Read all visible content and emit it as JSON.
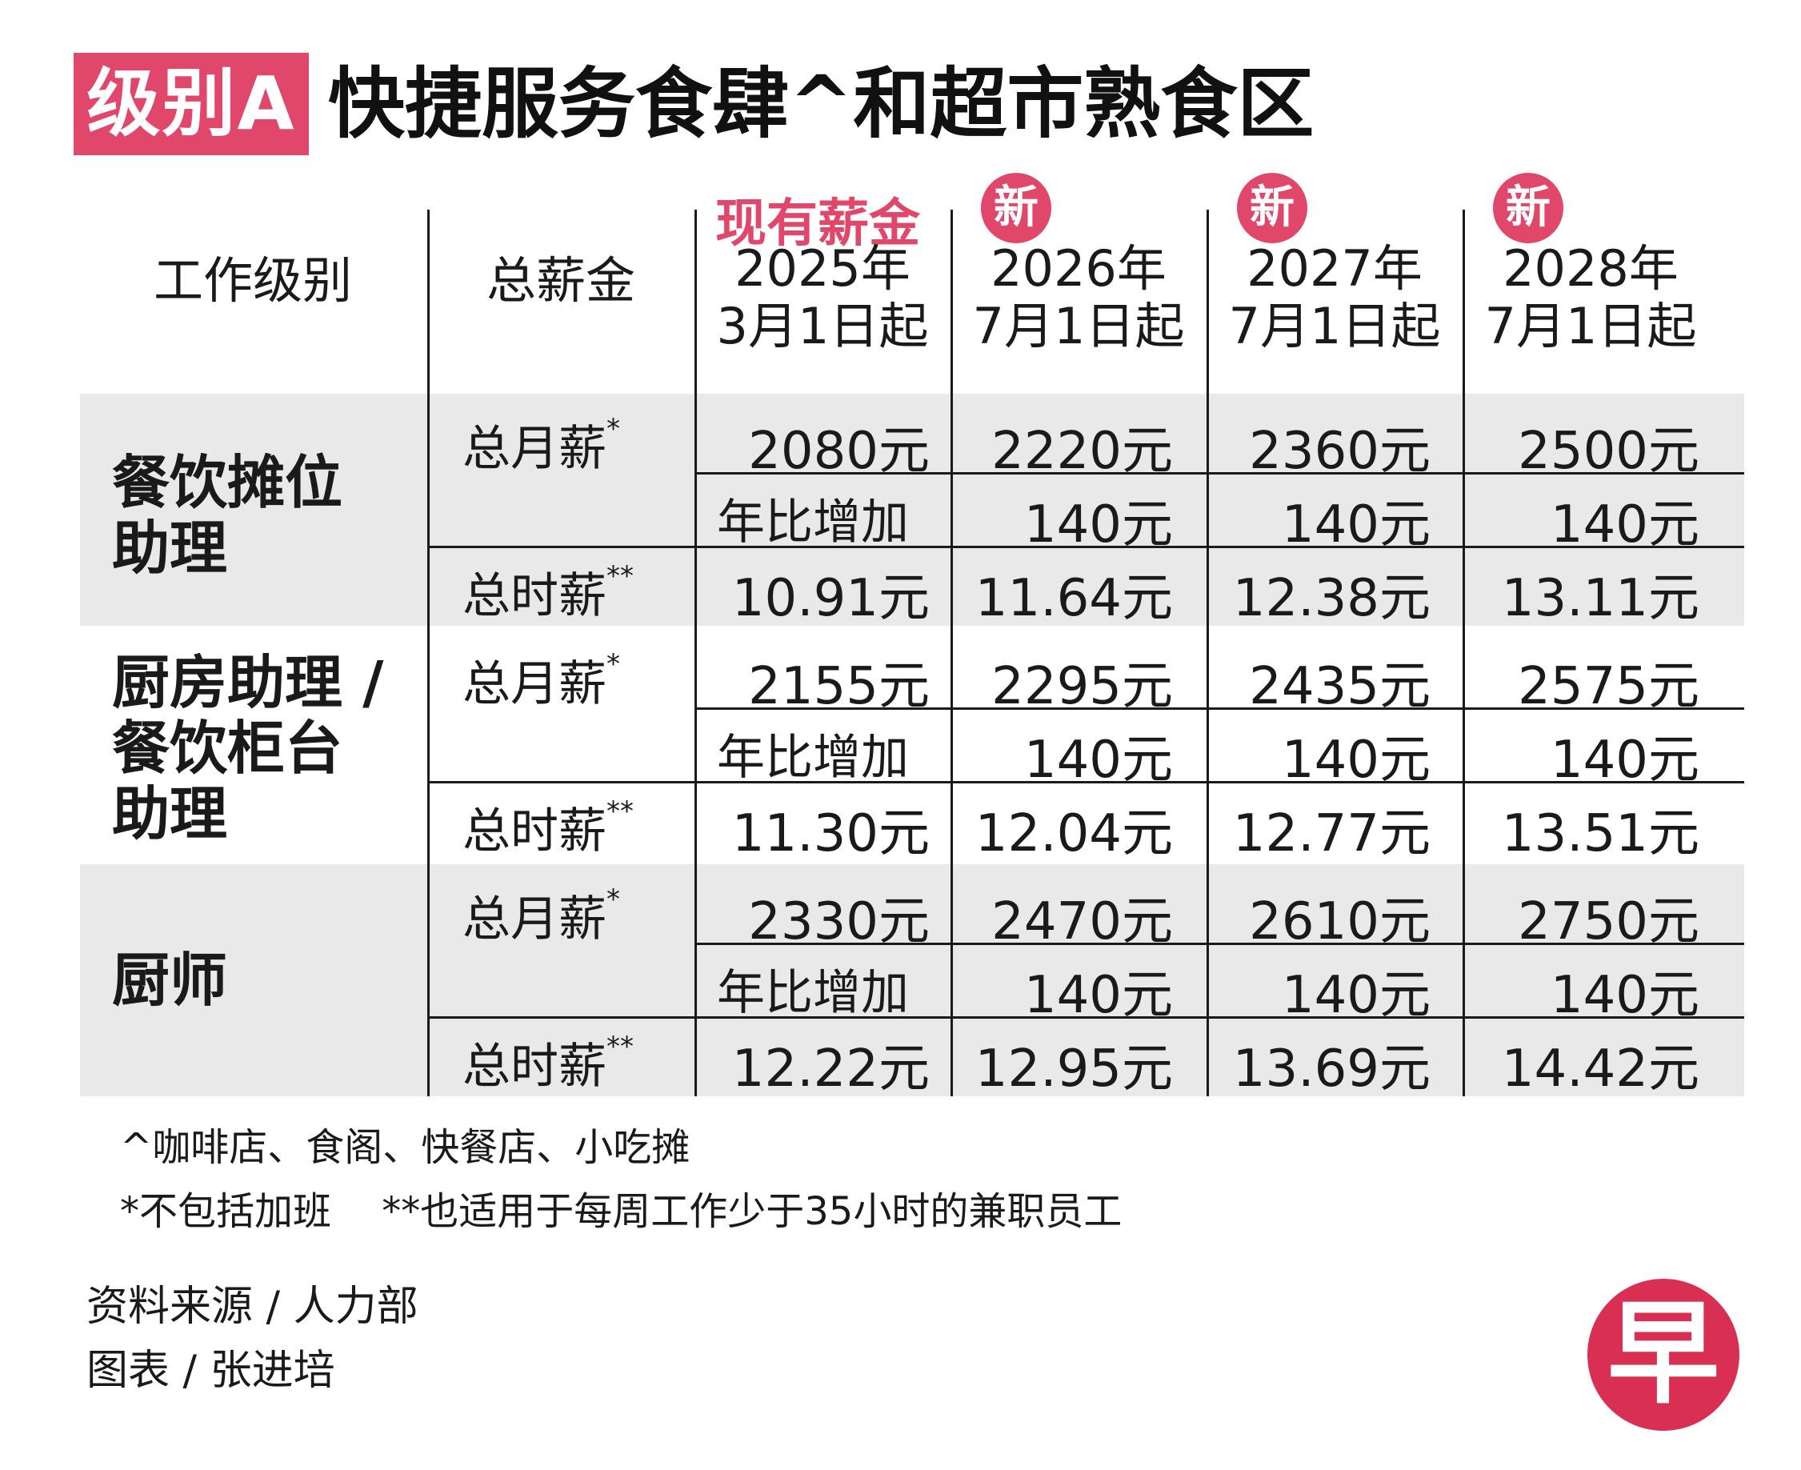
{
  "tag": "级别A",
  "title": "快捷服务食肆^和超市熟食区",
  "header": {
    "job_level": "工作级别",
    "total_wage": "总薪金",
    "current_label": "现有薪金",
    "new_badge": "新",
    "columns": [
      {
        "year": "2025年",
        "date": "3月1日起"
      },
      {
        "year": "2026年",
        "date": "7月1日起"
      },
      {
        "year": "2027年",
        "date": "7月1日起"
      },
      {
        "year": "2028年",
        "date": "7月1日起"
      }
    ]
  },
  "row_labels": {
    "monthly": "总月薪",
    "monthly_mark": "*",
    "yoy": "年比增加",
    "hourly": "总时薪",
    "hourly_mark": "**"
  },
  "groups": [
    {
      "name_lines": [
        "餐饮摊位",
        "助理"
      ],
      "monthly": [
        "2080元",
        "2220元",
        "2360元",
        "2500元"
      ],
      "yoy": [
        "140元",
        "140元",
        "140元"
      ],
      "hourly": [
        "10.91元",
        "11.64元",
        "12.38元",
        "13.11元"
      ]
    },
    {
      "name_lines": [
        "厨房助理 /",
        "餐饮柜台",
        "助理"
      ],
      "monthly": [
        "2155元",
        "2295元",
        "2435元",
        "2575元"
      ],
      "yoy": [
        "140元",
        "140元",
        "140元"
      ],
      "hourly": [
        "11.30元",
        "12.04元",
        "12.77元",
        "13.51元"
      ]
    },
    {
      "name_lines": [
        "厨师"
      ],
      "monthly": [
        "2330元",
        "2470元",
        "2610元",
        "2750元"
      ],
      "yoy": [
        "140元",
        "140元",
        "140元"
      ],
      "hourly": [
        "12.22元",
        "12.95元",
        "13.69元",
        "14.42元"
      ]
    }
  ],
  "notes": [
    "^咖啡店、食阁、快餐店、小吃摊",
    "*不包括加班　 **也适用于每周工作少于35小时的兼职员工"
  ],
  "source": "资料来源 / 人力部",
  "graphic": "图表 / 张进培",
  "logo": "早"
}
